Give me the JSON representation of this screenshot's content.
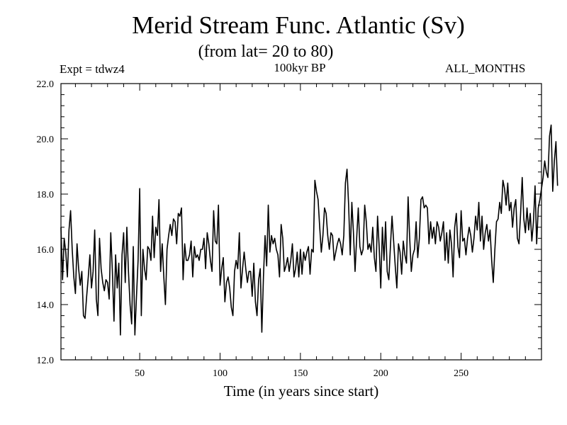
{
  "chart_data": {
    "type": "line",
    "title": "Merid Stream Func. Atlantic (Sv)",
    "subtitle": "(from lat= 20 to 80)",
    "annotations": {
      "left": "Expt = tdwz4",
      "center": "100kyr BP",
      "right": "ALL_MONTHS"
    },
    "xlabel": "Time (in years since start)",
    "ylabel": "",
    "xlim": [
      1,
      300
    ],
    "ylim": [
      12.0,
      22.0
    ],
    "xticks": [
      50,
      100,
      150,
      200,
      250
    ],
    "xtick_labels": [
      "50",
      "100",
      "150",
      "200",
      "250"
    ],
    "yticks": [
      12.0,
      14.0,
      16.0,
      18.0,
      20.0,
      22.0
    ],
    "ytick_labels": [
      "12.0",
      "14.0",
      "16.0",
      "18.0",
      "20.0",
      "22.0"
    ],
    "grid": false,
    "line_color": "#000000",
    "series": [
      {
        "x_start": 1,
        "x_step": 1,
        "values": [
          16.8,
          14.9,
          16.4,
          15.9,
          15.0,
          16.7,
          17.4,
          16.0,
          15.0,
          14.4,
          16.2,
          15.3,
          14.7,
          15.2,
          13.6,
          13.5,
          14.3,
          15.0,
          15.8,
          14.6,
          15.2,
          16.7,
          14.2,
          13.6,
          16.4,
          15.3,
          14.8,
          14.5,
          14.9,
          14.8,
          14.2,
          16.6,
          15.2,
          13.4,
          15.8,
          14.6,
          15.5,
          12.9,
          15.8,
          16.6,
          14.8,
          16.8,
          15.2,
          14.0,
          13.3,
          16.1,
          12.9,
          14.3,
          15.6,
          18.2,
          13.6,
          16.0,
          15.3,
          14.9,
          16.1,
          16.0,
          15.6,
          17.2,
          15.7,
          16.8,
          16.5,
          17.8,
          15.2,
          16.2,
          15.0,
          14.0,
          16.0,
          16.5,
          16.9,
          16.5,
          17.1,
          17.0,
          16.2,
          17.3,
          17.2,
          17.5,
          14.9,
          16.2,
          15.6,
          15.6,
          15.8,
          16.3,
          15.0,
          16.1,
          15.7,
          15.8,
          15.6,
          16.0,
          16.0,
          16.4,
          15.3,
          16.6,
          16.2,
          15.6,
          15.2,
          17.4,
          16.3,
          16.2,
          17.6,
          14.7,
          15.3,
          15.7,
          14.1,
          14.8,
          15.0,
          14.6,
          13.9,
          13.6,
          15.2,
          15.6,
          15.3,
          16.6,
          14.6,
          15.3,
          15.9,
          15.3,
          14.8,
          15.2,
          15.2,
          14.3,
          15.5,
          14.1,
          13.6,
          14.9,
          15.3,
          13.0,
          15.0,
          16.5,
          15.4,
          17.6,
          15.9,
          16.5,
          16.2,
          16.4,
          16.0,
          15.8,
          15.0,
          16.9,
          16.4,
          15.2,
          15.4,
          15.7,
          15.2,
          15.6,
          16.2,
          15.0,
          15.3,
          15.9,
          15.0,
          16.0,
          15.1,
          15.9,
          15.6,
          15.9,
          16.1,
          15.1,
          16.0,
          15.9,
          18.5,
          18.1,
          17.8,
          16.8,
          15.9,
          16.5,
          17.5,
          17.3,
          16.5,
          16.0,
          16.6,
          16.5,
          15.6,
          15.9,
          16.2,
          16.4,
          16.2,
          15.8,
          16.5,
          18.4,
          18.9,
          17.6,
          15.8,
          17.7,
          16.6,
          15.2,
          16.4,
          17.5,
          16.1,
          15.8,
          16.0,
          17.6,
          17.0,
          16.0,
          16.2,
          15.9,
          16.8,
          15.7,
          15.2,
          17.2,
          16.1,
          14.6,
          16.8,
          15.6,
          17.0,
          15.2,
          14.9,
          16.1,
          17.2,
          16.3,
          15.4,
          14.6,
          16.2,
          15.9,
          15.1,
          16.3,
          15.8,
          15.5,
          17.9,
          16.4,
          15.2,
          15.8,
          16.0,
          17.0,
          15.7,
          16.4,
          17.8,
          17.9,
          17.5,
          17.6,
          17.5,
          16.2,
          17.0,
          16.4,
          16.8,
          16.2,
          17.0,
          16.8,
          16.3,
          16.6,
          17.0,
          15.6,
          16.6,
          15.5,
          16.7,
          16.2,
          15.0,
          16.8,
          17.3,
          16.1,
          15.7,
          17.4,
          16.3,
          16.4,
          15.8,
          16.4,
          16.8,
          16.5,
          15.9,
          16.4,
          17.2,
          16.7,
          17.7,
          16.3,
          17.2,
          16.0,
          16.6,
          16.9,
          16.3,
          16.7,
          15.6,
          14.8,
          16.0,
          17.0,
          17.1,
          17.7,
          17.3,
          18.5,
          18.2,
          17.6,
          18.4,
          17.4,
          17.7,
          16.8,
          17.5,
          17.8,
          16.4,
          16.2,
          17.3,
          18.6,
          17.1,
          16.6,
          17.5,
          16.7,
          17.3,
          16.3,
          17.0,
          18.3,
          16.2,
          17.5,
          17.8,
          18.2,
          18.6,
          19.2,
          18.8,
          18.6,
          20.1,
          20.5,
          18.1,
          19.2,
          19.9,
          18.3
        ]
      }
    ]
  }
}
